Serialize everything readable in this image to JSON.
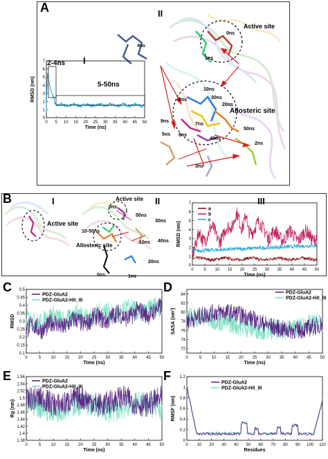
{
  "panelA": {
    "letter": "A",
    "roman_I": "I",
    "roman_II": "II",
    "inset": {
      "note_2_4": "2-4ns",
      "note_5_50": "5-50ns",
      "ylabel": "RMSD (nm)",
      "xlabel": "Time (ns)",
      "yticks": [
        "0",
        "1",
        "2",
        "3",
        "4",
        "5",
        "6",
        "7"
      ],
      "xticks": [
        "0",
        "5",
        "10",
        "15",
        "20",
        "25",
        "30",
        "35",
        "40",
        "45",
        "50"
      ]
    },
    "labels": {
      "active_site": "Active site",
      "allosteric_site": "Allosteric site",
      "t0": "0ns",
      "t1": "1ns",
      "t2": "2ns",
      "t3": "3ns",
      "t4": "4ns",
      "t5": "5ns",
      "t6": "6ns",
      "t7": "7ns",
      "t8": "8ns",
      "t9": "9ns",
      "t10": "10ns",
      "t20": "20ns",
      "t30": "30ns",
      "t40": "40ns",
      "t50": "50ns"
    }
  },
  "panelB": {
    "letter": "B",
    "roman_I": "I",
    "roman_II": "II",
    "roman_III": "III",
    "labels": {
      "active_site_I": "Active site",
      "active_site_II": "Active site",
      "allosteric_site": "Allosteric site",
      "t0a": "0ns",
      "t50": "50ns",
      "t30": "30ns",
      "t40": "40ns",
      "t10_50": "10-50ns",
      "t10": "10ns",
      "t0b": "0ns",
      "t1": "1ns",
      "t20": "20ns"
    },
    "chart": {
      "legend": [
        "a",
        "b",
        "c"
      ],
      "ylabel": "RMSD (nm)",
      "xlabel": "Time (ns)",
      "yticks": [
        "0",
        "1",
        "2",
        "3",
        "4",
        "5",
        "6",
        "7"
      ],
      "xticks": [
        "0",
        "5",
        "10",
        "15",
        "20",
        "25",
        "30",
        "35",
        "40",
        "45",
        "50"
      ]
    }
  },
  "panelC": {
    "letter": "C",
    "legend": [
      "PDZ-GluA2",
      "PDZ-GluA2-Hit_III"
    ],
    "ylabel": "RMSD",
    "xlabel": "Time (ns)",
    "yticks": [
      "0.1",
      "0.15",
      "0.2",
      "0.25",
      "0.3",
      "0.35",
      "0.4",
      "0.45",
      "0.5"
    ],
    "xticks": [
      "0",
      "5",
      "10",
      "15",
      "20",
      "25",
      "30",
      "35",
      "40",
      "45",
      "50"
    ]
  },
  "panelD": {
    "letter": "D",
    "legend": [
      "PDZ-GluA2",
      "PDZ-GluA2-Hit_III"
    ],
    "ylabel": "SASA (nm²)",
    "xlabel": "Time (ns)",
    "yticks": [
      "72",
      "74",
      "76",
      "78",
      "80",
      "82",
      "84"
    ],
    "xticks": [
      "0",
      "5",
      "10",
      "15",
      "20",
      "25",
      "30",
      "35",
      "40",
      "45",
      "50"
    ]
  },
  "panelE": {
    "letter": "E",
    "legend": [
      "PDZ-GluA2",
      "PDZ-GluA2-Hit_III"
    ],
    "ylabel": "Rg (nm)",
    "xlabel": "Time (ns)",
    "yticks": [
      "1.38",
      "1.4",
      "1.42",
      "1.44",
      "1.46",
      "1.48",
      "1.5",
      "1.52",
      "1.54",
      "1.56"
    ],
    "xticks": [
      "0",
      "5",
      "10",
      "15",
      "20",
      "25",
      "30",
      "35",
      "40",
      "45",
      "50"
    ]
  },
  "panelF": {
    "letter": "F",
    "legend": [
      "PDZ-GluA2",
      "PDZ-GluA2-Hit_III"
    ],
    "ylabel": "RMSF (nm)",
    "xlabel": "Residues",
    "yticks": [
      "0",
      "0.2",
      "0.4",
      "0.6",
      "0.8",
      "1",
      "1.2"
    ],
    "xticks": [
      "0",
      "10",
      "20",
      "30",
      "40",
      "50",
      "60",
      "70",
      "80",
      "90",
      "100",
      "110"
    ]
  },
  "colors": {
    "purple": "#5b2a86",
    "cyan": "#7fe0c4",
    "blue": "#29a9d8",
    "magenta": "#c0245f",
    "darkred": "#8b0f0f",
    "arrow": "#d62020"
  }
}
